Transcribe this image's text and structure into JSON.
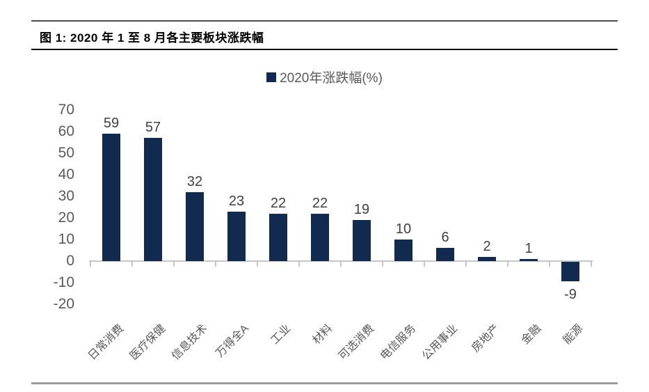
{
  "figure": {
    "title": "图 1: 2020 年 1 至 8 月各主要板块涨跌幅"
  },
  "legend": {
    "label": "2020年涨跌幅(%)"
  },
  "chart_data": {
    "type": "bar",
    "title": "2020年涨跌幅(%)",
    "categories": [
      "日常消费",
      "医疗保健",
      "信息技术",
      "万得全A",
      "工业",
      "材料",
      "可选消费",
      "电信服务",
      "公用事业",
      "房地产",
      "金融",
      "能源"
    ],
    "values": [
      59,
      57,
      32,
      23,
      22,
      22,
      19,
      10,
      6,
      2,
      1,
      -9
    ],
    "data_labels": [
      "59",
      "57",
      "32",
      "23",
      "22",
      "22",
      "19",
      "10",
      "6",
      "2",
      "1",
      "-9"
    ],
    "xlabel": "",
    "ylabel": "",
    "ylim": [
      -20,
      70
    ],
    "y_ticks": [
      70,
      60,
      50,
      40,
      30,
      20,
      10,
      0,
      -10,
      -20
    ],
    "grid": false,
    "legend_position": "top-center"
  },
  "colors": {
    "bar": "#122a50",
    "axis_line": "#c6c6c6",
    "tick_label": "#595959",
    "value_label": "#404040",
    "legend_text": "#595959",
    "title_text": "#000000"
  }
}
